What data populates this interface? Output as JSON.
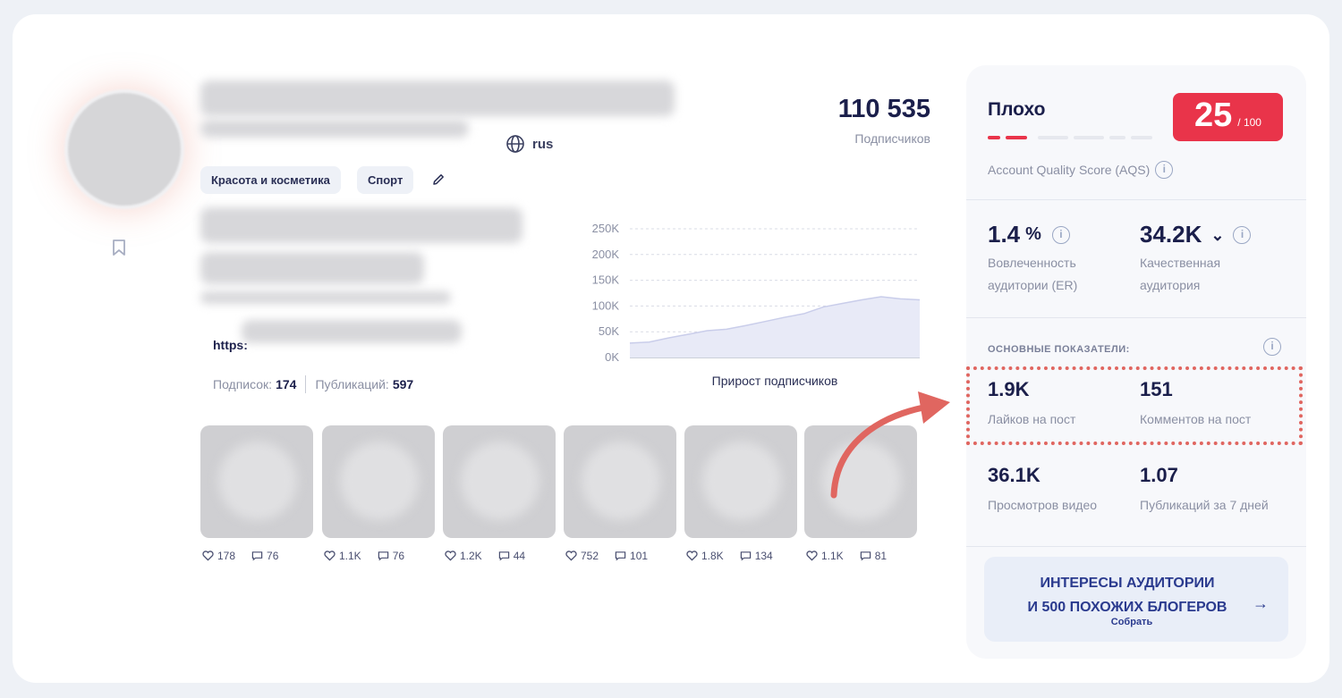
{
  "profile": {
    "subscribers_value": "110 535",
    "subscribers_label": "Подписчиков",
    "language": "rus",
    "categories": [
      "Красота и косметика",
      "Спорт"
    ],
    "link_prefix": "https:",
    "following_label": "Подписок:",
    "following_value": "174",
    "posts_label": "Публикаций:",
    "posts_value": "597"
  },
  "chart_data": {
    "type": "area",
    "title": "Прирост подписчиков",
    "y_ticks": [
      "250K",
      "200K",
      "150K",
      "100K",
      "50K",
      "0K"
    ],
    "ylim": [
      0,
      250000
    ],
    "values": [
      28000,
      30000,
      38000,
      45000,
      52000,
      55000,
      62000,
      70000,
      78000,
      85000,
      98000,
      105000,
      112000,
      118000,
      114000,
      112000
    ],
    "grid": true
  },
  "posts": [
    {
      "likes": "178",
      "comments": "76"
    },
    {
      "likes": "1.1K",
      "comments": "76"
    },
    {
      "likes": "1.2K",
      "comments": "44"
    },
    {
      "likes": "752",
      "comments": "101"
    },
    {
      "likes": "1.8K",
      "comments": "134"
    },
    {
      "likes": "1.1K",
      "comments": "81"
    }
  ],
  "panel": {
    "aqs_status": "Плохо",
    "aqs_score": "25",
    "aqs_max": "/ 100",
    "aqs_label": "Account Quality Score (AQS)",
    "colors": {
      "score": "#e9344a",
      "accent": "#2a3a8e",
      "highlight": "#e06660"
    },
    "er_value": "1.4",
    "er_unit": "%",
    "er_label_1": "Вовлеченность",
    "er_label_2": "аудитории (ER)",
    "quality_value": "34.2K",
    "quality_label_1": "Качественная",
    "quality_label_2": "аудитория",
    "section_label": "ОСНОВНЫЕ ПОКАЗАТЕЛИ:",
    "likes_value": "1.9K",
    "likes_label": "Лайков на пост",
    "comments_value": "151",
    "comments_label": "Комментов на пост",
    "views_value": "36.1K",
    "views_label": "Просмотров видео",
    "pubs_value": "1.07",
    "pubs_label": "Публикаций за 7 дней",
    "cta_line1": "ИНТЕРЕСЫ АУДИТОРИИ",
    "cta_line2": "И 500 ПОХОЖИХ БЛОГЕРОВ",
    "cta_sub": "Собрать",
    "info_glyph": "i",
    "arrow_glyph": "→",
    "chevron_glyph": "⌄"
  }
}
